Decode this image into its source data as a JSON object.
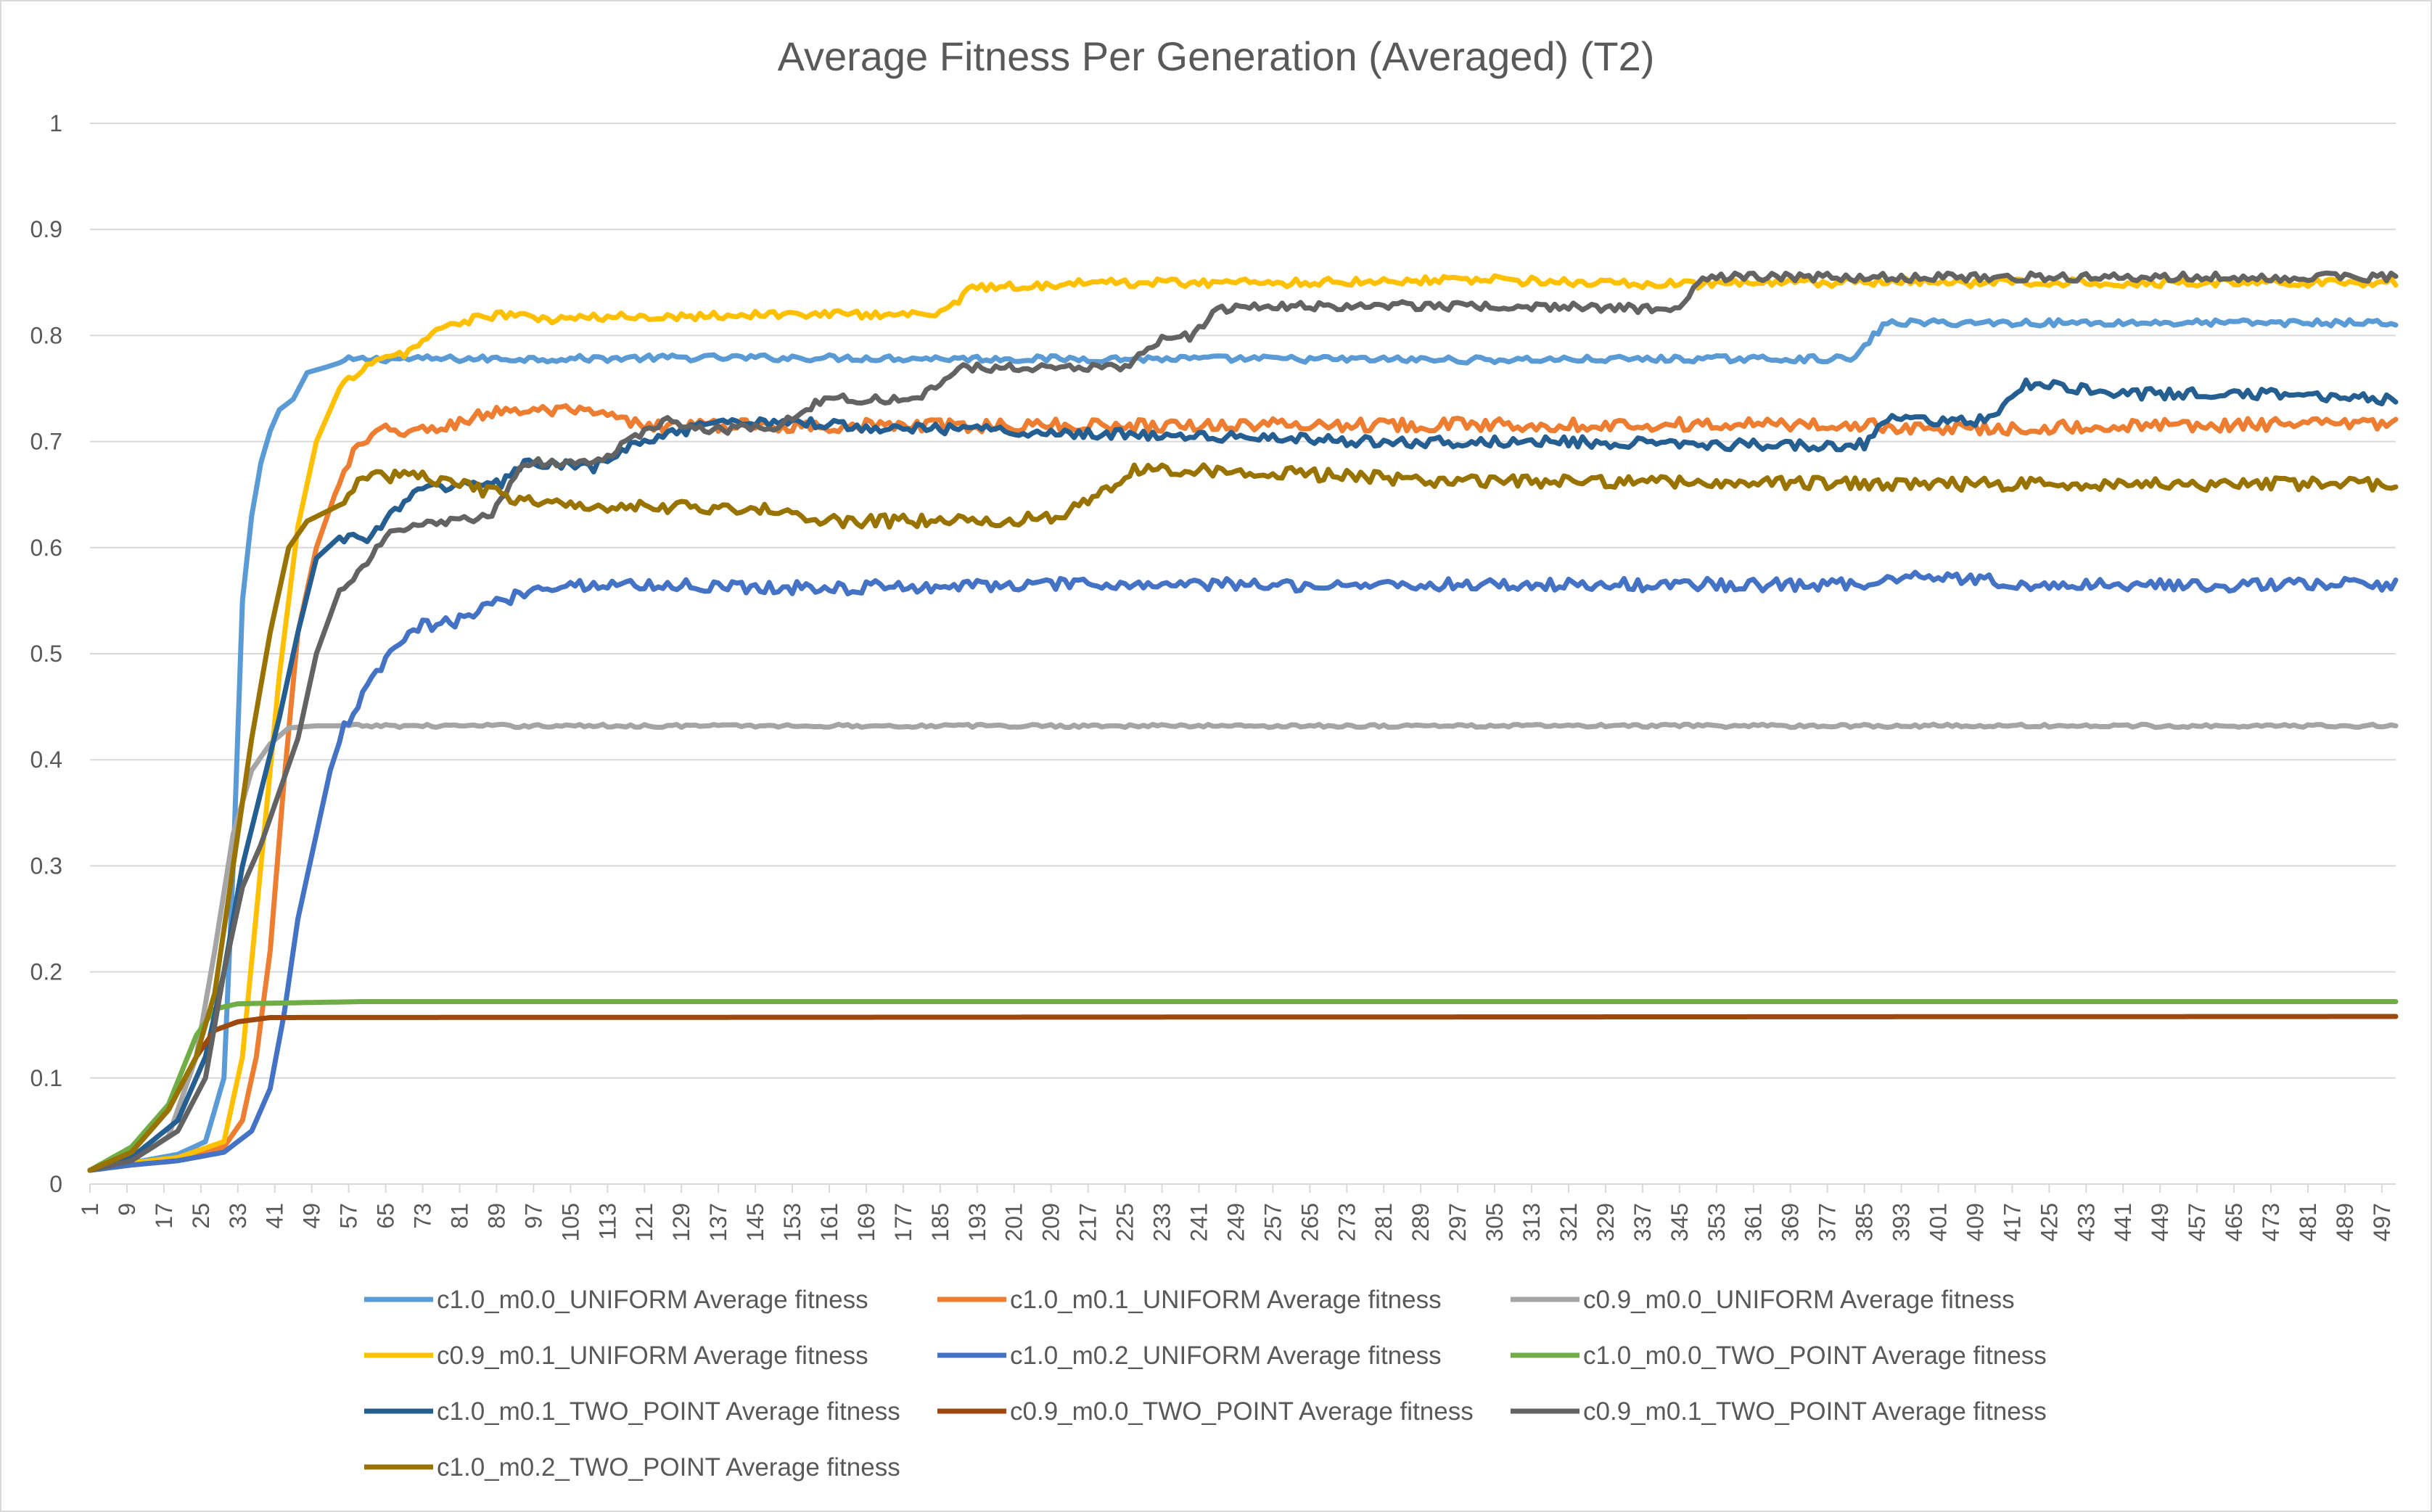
{
  "chart_data": {
    "type": "line",
    "title": "Average Fitness Per Generation (Averaged) (T2)",
    "xlabel": "",
    "ylabel": "",
    "xlim": [
      1,
      500
    ],
    "ylim": [
      0,
      1
    ],
    "y_ticks": [
      "0",
      "0.1",
      "0.2",
      "0.3",
      "0.4",
      "0.5",
      "0.6",
      "0.7",
      "0.8",
      "0.9",
      "1"
    ],
    "x_ticks": [
      "1",
      "9",
      "17",
      "25",
      "33",
      "41",
      "49",
      "57",
      "65",
      "73",
      "81",
      "89",
      "97",
      "105",
      "113",
      "121",
      "129",
      "137",
      "145",
      "153",
      "161",
      "169",
      "177",
      "185",
      "193",
      "201",
      "209",
      "217",
      "225",
      "233",
      "241",
      "249",
      "257",
      "265",
      "273",
      "281",
      "289",
      "297",
      "305",
      "313",
      "321",
      "329",
      "337",
      "345",
      "353",
      "361",
      "369",
      "377",
      "385",
      "393",
      "401",
      "409",
      "417",
      "425",
      "433",
      "441",
      "449",
      "457",
      "465",
      "473",
      "481",
      "489",
      "497"
    ],
    "grid": true,
    "legend_position": "bottom",
    "series": [
      {
        "name": "c1.0_m0.0_UNIFORM Average fitness",
        "color": "#5b9bd5",
        "points": [
          [
            1,
            0.013
          ],
          [
            10,
            0.02
          ],
          [
            20,
            0.028
          ],
          [
            26,
            0.04
          ],
          [
            30,
            0.1
          ],
          [
            32,
            0.3
          ],
          [
            34,
            0.55
          ],
          [
            36,
            0.63
          ],
          [
            38,
            0.68
          ],
          [
            40,
            0.71
          ],
          [
            42,
            0.73
          ],
          [
            45,
            0.74
          ],
          [
            48,
            0.765
          ],
          [
            52,
            0.77
          ],
          [
            57,
            0.777
          ],
          [
            65,
            0.778
          ],
          [
            100,
            0.778
          ],
          [
            130,
            0.779
          ],
          [
            160,
            0.779
          ],
          [
            200,
            0.778
          ],
          [
            250,
            0.778
          ],
          [
            300,
            0.777
          ],
          [
            350,
            0.778
          ],
          [
            383,
            0.778
          ],
          [
            387,
            0.8
          ],
          [
            390,
            0.812
          ],
          [
            420,
            0.812
          ],
          [
            460,
            0.812
          ],
          [
            500,
            0.812
          ]
        ],
        "noise": 0.003
      },
      {
        "name": "c1.0_m0.1_UNIFORM Average fitness",
        "color": "#ed7d31",
        "points": [
          [
            1,
            0.013
          ],
          [
            10,
            0.018
          ],
          [
            20,
            0.022
          ],
          [
            30,
            0.035
          ],
          [
            34,
            0.06
          ],
          [
            37,
            0.12
          ],
          [
            40,
            0.22
          ],
          [
            43,
            0.38
          ],
          [
            46,
            0.52
          ],
          [
            50,
            0.6
          ],
          [
            54,
            0.65
          ],
          [
            58,
            0.69
          ],
          [
            64,
            0.71
          ],
          [
            75,
            0.71
          ],
          [
            82,
            0.72
          ],
          [
            90,
            0.73
          ],
          [
            105,
            0.728
          ],
          [
            112,
            0.725
          ],
          [
            120,
            0.715
          ],
          [
            140,
            0.715
          ],
          [
            200,
            0.715
          ],
          [
            260,
            0.716
          ],
          [
            320,
            0.716
          ],
          [
            380,
            0.716
          ],
          [
            400,
            0.712
          ],
          [
            450,
            0.715
          ],
          [
            500,
            0.717
          ]
        ],
        "noise": 0.006
      },
      {
        "name": "c0.9_m0.0_UNIFORM Average fitness",
        "color": "#a5a5a5",
        "points": [
          [
            1,
            0.013
          ],
          [
            10,
            0.022
          ],
          [
            18,
            0.045
          ],
          [
            24,
            0.12
          ],
          [
            28,
            0.22
          ],
          [
            32,
            0.33
          ],
          [
            36,
            0.39
          ],
          [
            40,
            0.415
          ],
          [
            44,
            0.43
          ],
          [
            50,
            0.432
          ],
          [
            500,
            0.432
          ]
        ],
        "noise": 0.0015
      },
      {
        "name": "c0.9_m0.1_UNIFORM Average fitness",
        "color": "#ffc000",
        "points": [
          [
            1,
            0.013
          ],
          [
            10,
            0.02
          ],
          [
            20,
            0.025
          ],
          [
            30,
            0.04
          ],
          [
            34,
            0.12
          ],
          [
            38,
            0.3
          ],
          [
            42,
            0.48
          ],
          [
            46,
            0.62
          ],
          [
            50,
            0.7
          ],
          [
            55,
            0.75
          ],
          [
            60,
            0.77
          ],
          [
            70,
            0.785
          ],
          [
            78,
            0.81
          ],
          [
            90,
            0.82
          ],
          [
            100,
            0.815
          ],
          [
            120,
            0.818
          ],
          [
            150,
            0.82
          ],
          [
            185,
            0.82
          ],
          [
            192,
            0.845
          ],
          [
            220,
            0.85
          ],
          [
            260,
            0.85
          ],
          [
            300,
            0.853
          ],
          [
            340,
            0.848
          ],
          [
            380,
            0.85
          ],
          [
            420,
            0.85
          ],
          [
            460,
            0.85
          ],
          [
            500,
            0.85
          ]
        ],
        "noise": 0.004
      },
      {
        "name": "c1.0_m0.2_UNIFORM Average fitness",
        "color": "#4472c4",
        "points": [
          [
            1,
            0.013
          ],
          [
            10,
            0.018
          ],
          [
            20,
            0.022
          ],
          [
            30,
            0.03
          ],
          [
            36,
            0.05
          ],
          [
            40,
            0.09
          ],
          [
            43,
            0.16
          ],
          [
            46,
            0.25
          ],
          [
            50,
            0.33
          ],
          [
            53,
            0.39
          ],
          [
            56,
            0.43
          ],
          [
            60,
            0.46
          ],
          [
            66,
            0.5
          ],
          [
            72,
            0.525
          ],
          [
            80,
            0.53
          ],
          [
            90,
            0.55
          ],
          [
            100,
            0.565
          ],
          [
            120,
            0.565
          ],
          [
            160,
            0.562
          ],
          [
            200,
            0.565
          ],
          [
            260,
            0.565
          ],
          [
            320,
            0.565
          ],
          [
            380,
            0.565
          ],
          [
            400,
            0.575
          ],
          [
            420,
            0.565
          ],
          [
            460,
            0.565
          ],
          [
            500,
            0.565
          ]
        ],
        "noise": 0.006
      },
      {
        "name": "c1.0_m0.0_TWO_POINT Average fitness",
        "color": "#70ad47",
        "points": [
          [
            1,
            0.013
          ],
          [
            10,
            0.035
          ],
          [
            18,
            0.075
          ],
          [
            24,
            0.14
          ],
          [
            28,
            0.165
          ],
          [
            33,
            0.17
          ],
          [
            60,
            0.172
          ],
          [
            500,
            0.172
          ]
        ],
        "noise": 0
      },
      {
        "name": "c1.0_m0.1_TWO_POINT Average fitness",
        "color": "#255e91",
        "points": [
          [
            1,
            0.013
          ],
          [
            10,
            0.025
          ],
          [
            20,
            0.06
          ],
          [
            26,
            0.12
          ],
          [
            30,
            0.2
          ],
          [
            34,
            0.3
          ],
          [
            38,
            0.37
          ],
          [
            42,
            0.44
          ],
          [
            46,
            0.52
          ],
          [
            50,
            0.59
          ],
          [
            55,
            0.61
          ],
          [
            62,
            0.61
          ],
          [
            70,
            0.65
          ],
          [
            80,
            0.66
          ],
          [
            90,
            0.66
          ],
          [
            95,
            0.68
          ],
          [
            110,
            0.675
          ],
          [
            120,
            0.7
          ],
          [
            135,
            0.715
          ],
          [
            150,
            0.72
          ],
          [
            165,
            0.715
          ],
          [
            200,
            0.71
          ],
          [
            240,
            0.705
          ],
          [
            280,
            0.7
          ],
          [
            320,
            0.7
          ],
          [
            360,
            0.697
          ],
          [
            385,
            0.697
          ],
          [
            390,
            0.72
          ],
          [
            410,
            0.72
          ],
          [
            415,
            0.73
          ],
          [
            420,
            0.755
          ],
          [
            440,
            0.745
          ],
          [
            470,
            0.745
          ],
          [
            500,
            0.74
          ]
        ],
        "noise": 0.005
      },
      {
        "name": "c0.9_m0.0_TWO_POINT Average fitness",
        "color": "#9e480e",
        "points": [
          [
            1,
            0.013
          ],
          [
            10,
            0.03
          ],
          [
            18,
            0.07
          ],
          [
            24,
            0.12
          ],
          [
            28,
            0.145
          ],
          [
            33,
            0.153
          ],
          [
            40,
            0.157
          ],
          [
            500,
            0.158
          ]
        ],
        "noise": 0
      },
      {
        "name": "c0.9_m0.1_TWO_POINT Average fitness",
        "color": "#636363",
        "points": [
          [
            1,
            0.013
          ],
          [
            10,
            0.022
          ],
          [
            20,
            0.05
          ],
          [
            26,
            0.1
          ],
          [
            30,
            0.2
          ],
          [
            34,
            0.28
          ],
          [
            38,
            0.32
          ],
          [
            42,
            0.37
          ],
          [
            46,
            0.42
          ],
          [
            50,
            0.5
          ],
          [
            55,
            0.56
          ],
          [
            60,
            0.58
          ],
          [
            65,
            0.61
          ],
          [
            70,
            0.62
          ],
          [
            80,
            0.625
          ],
          [
            88,
            0.63
          ],
          [
            95,
            0.68
          ],
          [
            110,
            0.68
          ],
          [
            118,
            0.7
          ],
          [
            125,
            0.72
          ],
          [
            135,
            0.71
          ],
          [
            150,
            0.715
          ],
          [
            160,
            0.74
          ],
          [
            180,
            0.74
          ],
          [
            190,
            0.77
          ],
          [
            200,
            0.77
          ],
          [
            225,
            0.77
          ],
          [
            232,
            0.795
          ],
          [
            240,
            0.8
          ],
          [
            245,
            0.825
          ],
          [
            260,
            0.828
          ],
          [
            300,
            0.828
          ],
          [
            345,
            0.825
          ],
          [
            350,
            0.855
          ],
          [
            380,
            0.855
          ],
          [
            420,
            0.855
          ],
          [
            460,
            0.855
          ],
          [
            500,
            0.855
          ]
        ],
        "noise": 0.004
      },
      {
        "name": "c1.0_m0.2_TWO_POINT Average fitness",
        "color": "#997300",
        "points": [
          [
            1,
            0.013
          ],
          [
            10,
            0.03
          ],
          [
            18,
            0.07
          ],
          [
            24,
            0.12
          ],
          [
            28,
            0.18
          ],
          [
            32,
            0.3
          ],
          [
            36,
            0.42
          ],
          [
            40,
            0.52
          ],
          [
            44,
            0.6
          ],
          [
            48,
            0.625
          ],
          [
            55,
            0.64
          ],
          [
            60,
            0.665
          ],
          [
            70,
            0.67
          ],
          [
            80,
            0.66
          ],
          [
            90,
            0.65
          ],
          [
            100,
            0.64
          ],
          [
            120,
            0.64
          ],
          [
            150,
            0.635
          ],
          [
            160,
            0.625
          ],
          [
            200,
            0.625
          ],
          [
            210,
            0.63
          ],
          [
            220,
            0.65
          ],
          [
            228,
            0.675
          ],
          [
            260,
            0.67
          ],
          [
            300,
            0.662
          ],
          [
            350,
            0.662
          ],
          [
            400,
            0.66
          ],
          [
            450,
            0.66
          ],
          [
            500,
            0.66
          ]
        ],
        "noise": 0.006
      }
    ]
  }
}
